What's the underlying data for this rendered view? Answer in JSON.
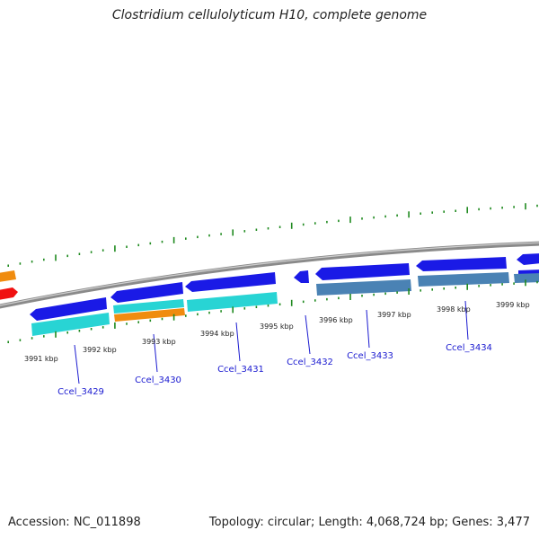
{
  "title": "Clostridium cellulolyticum H10, complete genome",
  "footer": {
    "accession": "Accession: NC_011898",
    "summary": "Topology: circular; Length: 4,068,724 bp; Genes: 3,477"
  },
  "map": {
    "colors": {
      "backbone": "#8a8a8a",
      "ticks": "#1f8a1f",
      "gene_blue": "#1a1ae6",
      "gene_cyan": "#28d4d4",
      "gene_orange": "#f08c0f",
      "gene_red": "#f01010",
      "gene_steel": "#4a82b4",
      "label_blue": "#1a1ad0",
      "kbp_text": "#222222"
    },
    "kbp_labels": [
      "3991 kbp",
      "3992 kbp",
      "3993 kbp",
      "3994 kbp",
      "3995 kbp",
      "3996 kbp",
      "3997 kbp",
      "3998 kbp",
      "3999 kbp"
    ],
    "gene_labels": [
      "Ccel_3429",
      "Ccel_3430",
      "Ccel_3431",
      "Ccel_3432",
      "Ccel_3433",
      "Ccel_3434"
    ]
  }
}
